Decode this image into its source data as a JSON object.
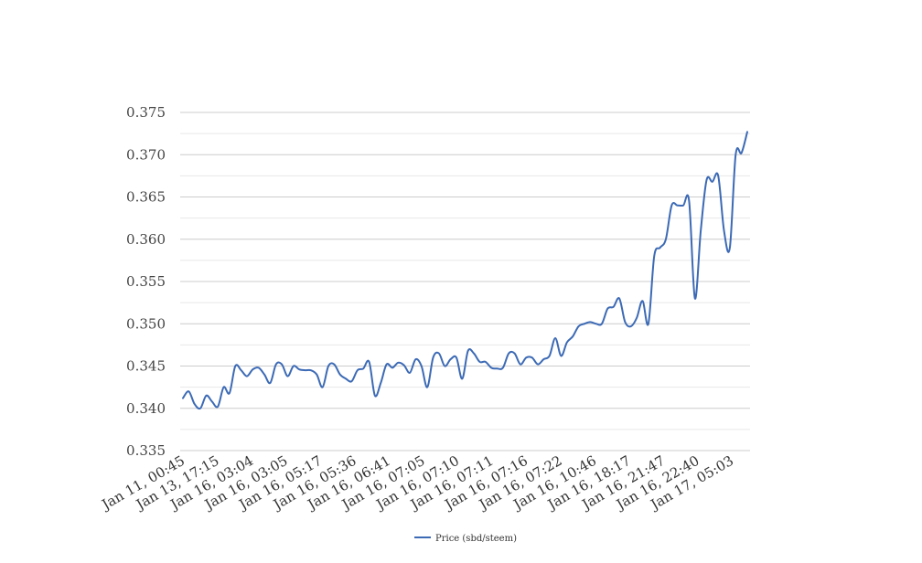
{
  "chart_data": {
    "type": "line",
    "title": "",
    "xlabel": "",
    "ylabel": "",
    "ylim": [
      0.335,
      0.375
    ],
    "yticks": [
      "0.375",
      "0.370",
      "0.365",
      "0.360",
      "0.355",
      "0.350",
      "0.345",
      "0.340",
      "0.335"
    ],
    "grid": true,
    "legend_position": "bottom-center",
    "series_color": "#3c6ab5",
    "x_tick_labels": [
      "Jan 11, 00:45",
      "Jan 13, 17:15",
      "Jan 16, 03:04",
      "Jan 16, 03:05",
      "Jan 16, 05:17",
      "Jan 16, 05:36",
      "Jan 16, 06:41",
      "Jan 16, 07:05",
      "Jan 16, 07:10",
      "Jan 16, 07:11",
      "Jan 16, 07:16",
      "Jan 16, 07:22",
      "Jan 16, 10:46",
      "Jan 16, 18:17",
      "Jan 16, 21:47",
      "Jan 16, 22:40",
      "Jan 17, 05:03"
    ],
    "series": [
      {
        "name": "Price (sbd/steem)",
        "values": [
          0.3412,
          0.342,
          0.3405,
          0.34,
          0.3415,
          0.3408,
          0.3402,
          0.3425,
          0.3418,
          0.345,
          0.3445,
          0.3438,
          0.3446,
          0.3448,
          0.344,
          0.343,
          0.3452,
          0.3452,
          0.3438,
          0.345,
          0.3446,
          0.3445,
          0.3445,
          0.344,
          0.3425,
          0.345,
          0.3452,
          0.344,
          0.3435,
          0.3432,
          0.3445,
          0.3447,
          0.3455,
          0.3415,
          0.343,
          0.3452,
          0.3448,
          0.3454,
          0.3451,
          0.3442,
          0.3458,
          0.345,
          0.3425,
          0.346,
          0.3465,
          0.345,
          0.3458,
          0.346,
          0.3435,
          0.3468,
          0.3465,
          0.3455,
          0.3455,
          0.3448,
          0.3447,
          0.3448,
          0.3465,
          0.3465,
          0.3452,
          0.346,
          0.346,
          0.3452,
          0.3458,
          0.3462,
          0.3483,
          0.3462,
          0.3478,
          0.3485,
          0.3497,
          0.35,
          0.3502,
          0.35,
          0.35,
          0.3518,
          0.352,
          0.353,
          0.3502,
          0.3497,
          0.3507,
          0.3527,
          0.35,
          0.358,
          0.359,
          0.36,
          0.364,
          0.364,
          0.364,
          0.3645,
          0.353,
          0.361,
          0.367,
          0.3668,
          0.3675,
          0.361,
          0.359,
          0.37,
          0.3702,
          0.3727
        ]
      }
    ]
  }
}
